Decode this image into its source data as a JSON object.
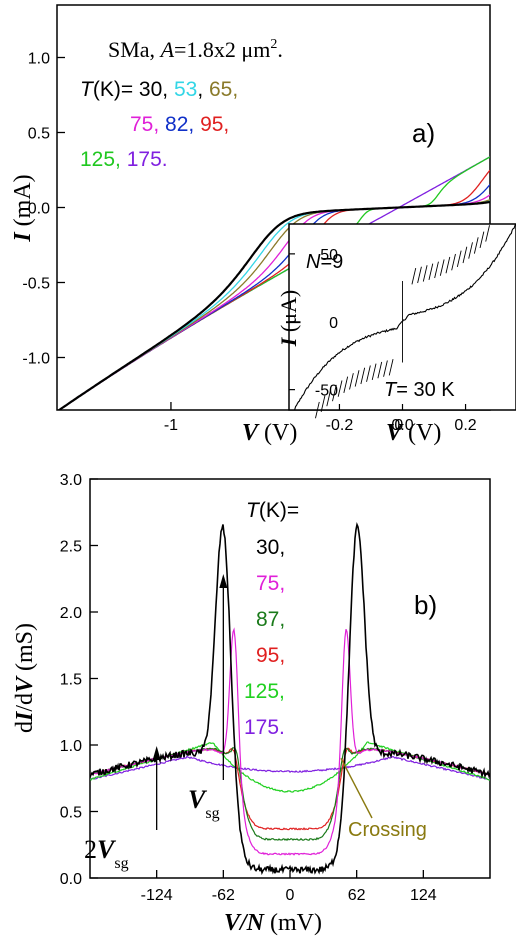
{
  "chart_data": [
    {
      "panel": "a)",
      "type": "line",
      "title_parts": {
        "sample": "SMa, ",
        "a_sym": "A",
        "a_rest": "=1.8x2 μm",
        "sup": "2",
        "dot": "."
      },
      "xlabel": {
        "sym": "V",
        "unit": " (V)"
      },
      "ylabel": {
        "sym": "I",
        "unit": " (mA)"
      },
      "xlim": [
        -1.5,
        0.4
      ],
      "ylim": [
        -1.35,
        1.35
      ],
      "xticks": [
        "-1",
        "0"
      ],
      "yticks": [
        "-1.0",
        "-0.5",
        "0.0",
        "0.5",
        "1.0"
      ],
      "xtick_values": [
        -1,
        0
      ],
      "ytick_values": [
        -1.0,
        -0.5,
        0.0,
        0.5,
        1.0
      ],
      "legend_prefix_sym": "T",
      "legend_prefix_rest": "(K)= ",
      "series": [
        {
          "name": "30",
          "color": "#000000",
          "gap": 0.3,
          "ohmic_slope": 0.84
        },
        {
          "name": "53",
          "color": "#33d6e6",
          "gap": 0.28,
          "ohmic_slope": 0.84
        },
        {
          "name": "65",
          "color": "#8a7a2a",
          "gap": 0.26,
          "ohmic_slope": 0.84
        },
        {
          "name": "75",
          "color": "#e020d8",
          "gap": 0.23,
          "ohmic_slope": 0.84
        },
        {
          "name": "82",
          "color": "#1030c8",
          "gap": 0.2,
          "ohmic_slope": 0.84
        },
        {
          "name": "95",
          "color": "#e02020",
          "gap": 0.17,
          "ohmic_slope": 0.84
        },
        {
          "name": "125",
          "color": "#20c820",
          "gap": 0.08,
          "ohmic_slope": 0.84
        },
        {
          "name": "175",
          "color": "#8020e0",
          "gap": 0.0,
          "ohmic_slope": 0.84
        }
      ],
      "legend_rows": [
        [
          "30",
          "53",
          "65"
        ],
        [
          "75",
          "82",
          "95"
        ],
        [
          "125",
          "175"
        ]
      ],
      "inset": {
        "type": "line",
        "label_sym": "N",
        "label_rest": "=9",
        "temp_sym": "T",
        "temp_rest": "= 30 K",
        "xlabel": {
          "sym": "V",
          "unit": " (V)"
        },
        "ylabel": {
          "sym": "I",
          "unit": " (μA)"
        },
        "xlim": [
          -0.36,
          0.36
        ],
        "ylim": [
          -65,
          72
        ],
        "xticks": [
          "-0.2",
          "0.0",
          "0.2"
        ],
        "yticks": [
          "-50",
          "0",
          "50"
        ],
        "xtick_values": [
          -0.2,
          0.0,
          0.2
        ],
        "ytick_values": [
          -50,
          0,
          50
        ],
        "color": "#000000"
      }
    },
    {
      "panel": "b)",
      "type": "line",
      "xlabel": {
        "sym": "V/N",
        "unit": " (mV)"
      },
      "ylabel": {
        "pre": "d",
        "sym1": "I",
        "mid": "/d",
        "sym2": "V",
        "unit": " (mS)"
      },
      "xlim": [
        -186,
        186
      ],
      "ylim": [
        0.0,
        3.0
      ],
      "xticks": [
        "-124",
        "-62",
        "0",
        "62",
        "124"
      ],
      "yticks": [
        "0.0",
        "0.5",
        "1.0",
        "1.5",
        "2.0",
        "2.5",
        "3.0"
      ],
      "xtick_values": [
        -124,
        -62,
        0,
        62,
        124
      ],
      "ytick_values": [
        0.0,
        0.5,
        1.0,
        1.5,
        2.0,
        2.5,
        3.0
      ],
      "legend_title_sym": "T",
      "legend_title_rest": "(K)=",
      "series": [
        {
          "name": "30,",
          "color": "#000000",
          "zero": 0.06,
          "peak_x": 62,
          "peak_y": 2.95,
          "bg": 0.78
        },
        {
          "name": "75,",
          "color": "#e020d8",
          "zero": 0.18,
          "peak_x": 52,
          "peak_y": 2.15,
          "bg": 0.78
        },
        {
          "name": "87,",
          "color": "#1a7a1a",
          "zero": 0.29,
          "peak_x": 50,
          "peak_y": 1.2,
          "bg": 0.78
        },
        {
          "name": "95,",
          "color": "#e02020",
          "zero": 0.37,
          "peak_x": 52,
          "peak_y": 1.17,
          "bg": 0.78
        },
        {
          "name": "125,",
          "color": "#20d020",
          "zero": 0.65,
          "peak_x": 72,
          "peak_y": 1.02,
          "bg": 0.78
        },
        {
          "name": "175.",
          "color": "#8020e0",
          "zero": 0.8,
          "peak_x": 95,
          "peak_y": 0.91,
          "bg": 0.78
        }
      ],
      "annotations": {
        "vsg": {
          "sym": "V",
          "sub": "sg",
          "x": -62,
          "y": 2.1
        },
        "two_vsg": {
          "pre": "2",
          "sym": "V",
          "sub": "sg",
          "x": -124,
          "y": 0.9
        },
        "crossing": {
          "text": "Crossing",
          "x": 40,
          "y": 0.93,
          "color": "#8a7a10"
        }
      }
    }
  ]
}
